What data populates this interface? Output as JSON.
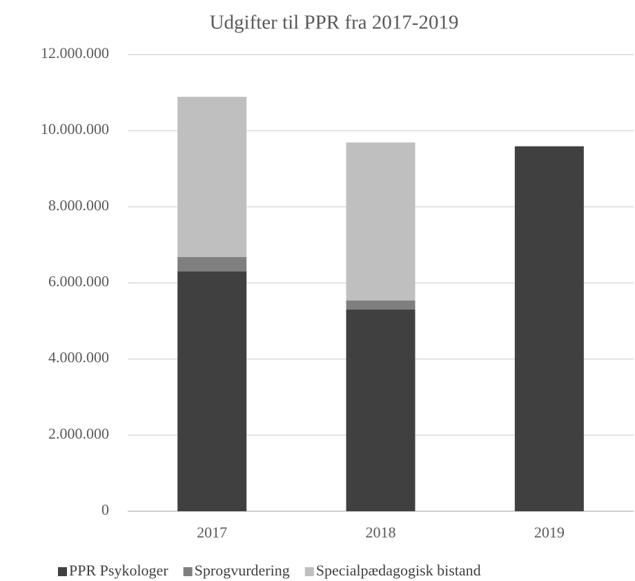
{
  "chart_data": {
    "type": "stacked_bar",
    "title": "Udgifter til PPR fra 2017-2019",
    "categories": [
      "2017",
      "2018",
      "2019"
    ],
    "series": [
      {
        "name": "PPR Psykologer",
        "color": "#404040",
        "values": [
          6300000,
          5300000,
          9590000
        ]
      },
      {
        "name": "Sprogvurdering",
        "color": "#7f7f7f",
        "values": [
          380000,
          240000,
          0
        ]
      },
      {
        "name": "Specialpædagogisk bistand",
        "color": "#bfbfbf",
        "values": [
          4210000,
          4150000,
          0
        ]
      }
    ],
    "ylim": [
      0,
      12000000
    ],
    "yticks": [
      0,
      {
        "value": 2000000,
        "label": "2.000.000"
      },
      {
        "value": 4000000,
        "label": "4.000.000"
      },
      {
        "value": 6000000,
        "label": "6.000.000"
      },
      {
        "value": 8000000,
        "label": "8.000.000"
      },
      {
        "value": 10000000,
        "label": "10.000.000"
      },
      {
        "value": 12000000,
        "label": "12.000.000"
      }
    ],
    "grid": true,
    "legend": "bottom"
  }
}
